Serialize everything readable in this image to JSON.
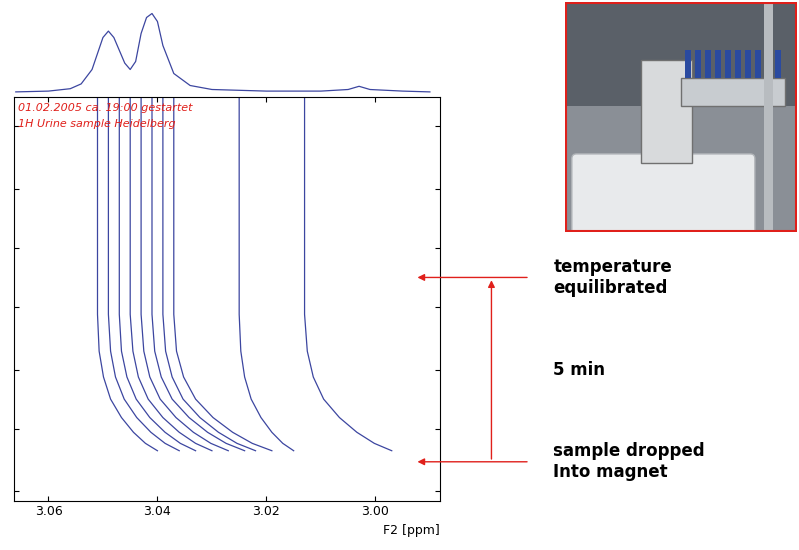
{
  "chart_data": [
    {
      "type": "line",
      "x": [
        3.066,
        3.06,
        3.056,
        3.054,
        3.052,
        3.05,
        3.049,
        3.048,
        3.046,
        3.045,
        3.044,
        3.043,
        3.042,
        3.041,
        3.04,
        3.039,
        3.037,
        3.034,
        3.03,
        3.02,
        3.01,
        3.005,
        3.003,
        3.001,
        2.995,
        2.99
      ],
      "values": [
        2,
        3,
        6,
        12,
        30,
        70,
        78,
        70,
        38,
        30,
        40,
        75,
        95,
        100,
        90,
        60,
        25,
        10,
        5,
        3,
        3,
        5,
        9,
        5,
        3,
        2
      ],
      "color": "#3c46a0",
      "xlim": [
        3.0664,
        2.9881
      ],
      "ylim": [
        0,
        110
      ],
      "tick_labels": false
    },
    {
      "type": "contour",
      "texts": [
        "01.02.2005 ca. 19:00 gestartet",
        "1H Urine sample Heidelberg"
      ],
      "x_label": "F2 [ppm]",
      "xlim": [
        3.0664,
        2.9881
      ],
      "xticks": [
        3.06,
        3.04,
        3.02,
        {
          "value": 3.0,
          "label": "3.00"
        }
      ],
      "ylim": [
        -1.05,
        9.9
      ],
      "yticks": [
        -0.8,
        0.9,
        2.5,
        4.2,
        5.8,
        7.4,
        9.1
      ],
      "tick_labels": "x",
      "y": [
        9.9,
        4.0,
        3.0,
        2.3,
        1.7,
        1.2,
        0.8,
        0.5,
        0.3
      ],
      "series": [
        {
          "color": "#3c46a0",
          "x": [
            3.051,
            3.051,
            3.0507,
            3.0499,
            3.0486,
            3.0466,
            3.0444,
            3.0422,
            3.04
          ]
        },
        {
          "color": "#3c46a0",
          "x": [
            3.049,
            3.049,
            3.0486,
            3.0477,
            3.0461,
            3.0438,
            3.0412,
            3.0386,
            3.036
          ]
        },
        {
          "color": "#3c46a0",
          "x": [
            3.047,
            3.047,
            3.0466,
            3.0456,
            3.0439,
            3.0414,
            3.0386,
            3.0358,
            3.033
          ]
        },
        {
          "color": "#3c46a0",
          "x": [
            3.045,
            3.045,
            3.0445,
            3.0435,
            3.0417,
            3.039,
            3.036,
            3.033,
            3.03
          ]
        },
        {
          "color": "#3c46a0",
          "x": [
            3.043,
            3.043,
            3.0425,
            3.0414,
            3.0395,
            3.0366,
            3.0334,
            3.0302,
            3.027
          ]
        },
        {
          "color": "#3c46a0",
          "x": [
            3.041,
            3.041,
            3.0405,
            3.0393,
            3.0373,
            3.0342,
            3.0308,
            3.0274,
            3.024
          ]
        },
        {
          "color": "#3c46a0",
          "x": [
            3.039,
            3.039,
            3.0385,
            3.0373,
            3.0353,
            3.0322,
            3.0288,
            3.0254,
            3.022
          ]
        },
        {
          "color": "#3c46a0",
          "x": [
            3.037,
            3.037,
            3.0365,
            3.0352,
            3.033,
            3.0298,
            3.0262,
            3.0226,
            3.019
          ]
        },
        {
          "color": "#3c46a0",
          "x": [
            3.025,
            3.025,
            3.0247,
            3.024,
            3.0228,
            3.021,
            3.019,
            3.017,
            3.015
          ]
        },
        {
          "color": "#3c46a0",
          "x": [
            3.013,
            3.013,
            3.0125,
            3.0114,
            3.0095,
            3.0066,
            3.0034,
            3.0002,
            2.997
          ]
        }
      ],
      "annotations": [
        {
          "text": "temperature\nequilibrated",
          "y": 5
        },
        {
          "text": "sample dropped\nInto magnet",
          "y": 0
        }
      ],
      "interval": {
        "from": 0,
        "to": 5,
        "label": "5 min"
      }
    }
  ]
}
